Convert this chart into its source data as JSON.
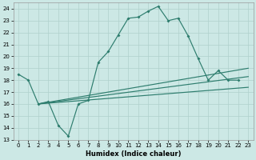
{
  "xlabel": "Humidex (Indice chaleur)",
  "line_color": "#2e7d6e",
  "bg_color": "#cce8e5",
  "grid_color": "#b0d0cc",
  "ylim": [
    13,
    24.5
  ],
  "xlim": [
    -0.5,
    23.5
  ],
  "yticks": [
    13,
    14,
    15,
    16,
    17,
    18,
    19,
    20,
    21,
    22,
    23,
    24
  ],
  "xticks": [
    0,
    1,
    2,
    3,
    4,
    5,
    6,
    7,
    8,
    9,
    10,
    11,
    12,
    13,
    14,
    15,
    16,
    17,
    18,
    19,
    20,
    21,
    22,
    23
  ],
  "main_x": [
    0,
    1,
    2,
    3,
    4,
    5,
    6,
    7,
    8,
    9,
    10,
    11,
    12,
    13,
    14,
    15,
    16,
    17,
    18,
    19,
    20,
    21,
    22,
    23
  ],
  "main_y": [
    18.5,
    18.0,
    16.0,
    16.2,
    14.2,
    13.3,
    16.0,
    16.3,
    19.5,
    20.4,
    21.8,
    23.2,
    23.3,
    23.8,
    24.2,
    23.0,
    23.2,
    21.7,
    19.8,
    18.0,
    18.8,
    18.0,
    18.0,
    null
  ],
  "straight_lines": [
    {
      "x": [
        2,
        23
      ],
      "y": [
        16.0,
        19.0
      ]
    },
    {
      "x": [
        2,
        23
      ],
      "y": [
        16.0,
        18.3
      ]
    },
    {
      "x": [
        2,
        23
      ],
      "y": [
        16.0,
        17.4
      ]
    }
  ]
}
